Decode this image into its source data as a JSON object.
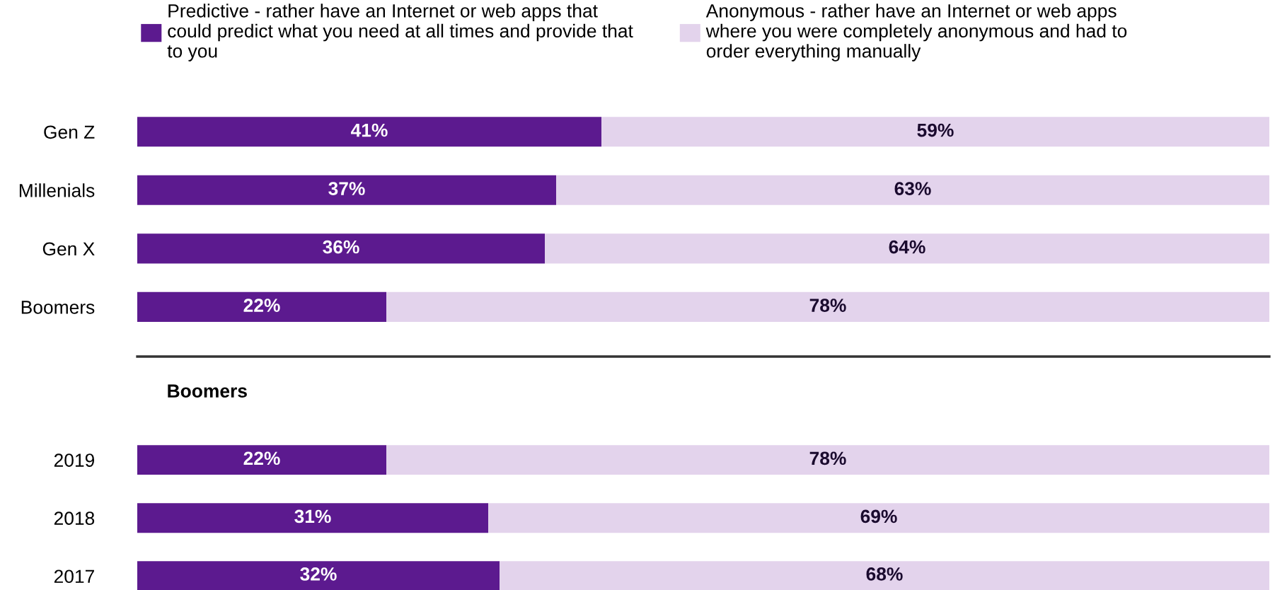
{
  "chart_data": [
    {
      "type": "bar",
      "orientation": "horizontal",
      "stacked": true,
      "categories": [
        "Gen Z",
        "Millenials",
        "Gen X",
        "Boomers"
      ],
      "xlim": [
        0,
        100
      ],
      "tick_labels": "y",
      "legend": "top",
      "grid": false,
      "series": [
        {
          "name": "Predictive - rather have an Internet or web apps that\ncould predict what you need at all times and provide that\nto you",
          "color": "#5c1a8f",
          "values": [
            41,
            37,
            36,
            22
          ],
          "value_labels": [
            "41%",
            "37%",
            "36%",
            "22%"
          ]
        },
        {
          "name": "Anonymous - rather have an Internet or web apps\nwhere you were completely anonymous and had to\norder everything manually",
          "color": "#e3d3ec",
          "values": [
            59,
            63,
            64,
            78
          ],
          "value_labels": [
            "59%",
            "63%",
            "64%",
            "78%"
          ]
        }
      ]
    },
    {
      "type": "bar",
      "orientation": "horizontal",
      "stacked": true,
      "title": "Boomers",
      "categories": [
        "2019",
        "2018",
        "2017"
      ],
      "xlim": [
        0,
        100
      ],
      "tick_labels": "y",
      "grid": false,
      "series": [
        {
          "color": "#5c1a8f",
          "values": [
            22,
            31,
            32
          ],
          "value_labels": [
            "22%",
            "31%",
            "32%"
          ]
        },
        {
          "color": "#e3d3ec",
          "values": [
            78,
            69,
            68
          ],
          "value_labels": [
            "78%",
            "69%",
            "68%"
          ]
        }
      ]
    }
  ]
}
